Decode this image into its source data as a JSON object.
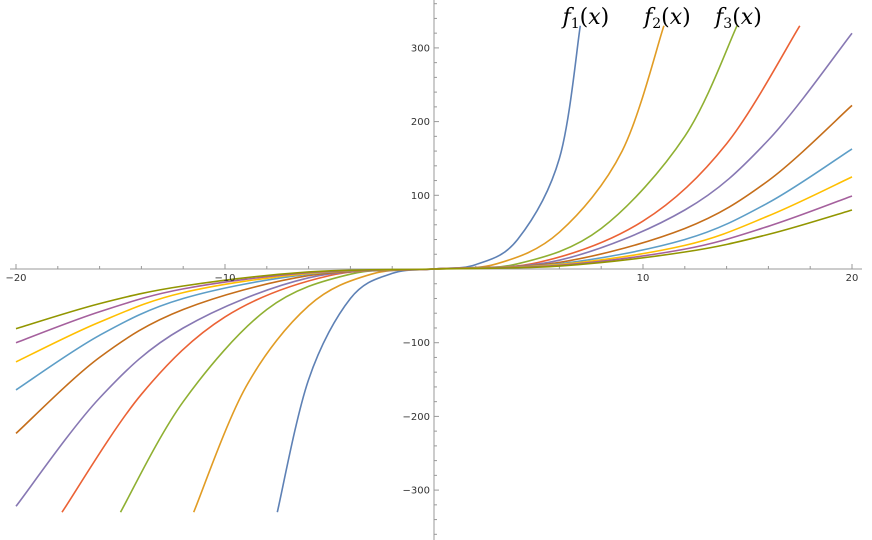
{
  "chart_data": {
    "type": "line",
    "title": "",
    "xlabel": "",
    "ylabel": "",
    "xlim": [
      -20,
      20
    ],
    "ylim": [
      -370,
      370
    ],
    "x_ticks": [
      -20,
      -10,
      10,
      20
    ],
    "y_ticks": [
      -300,
      -200,
      -100,
      100,
      200,
      300
    ],
    "x_tick_labels": [
      "−20",
      "−10",
      "10",
      "20"
    ],
    "y_tick_labels": [
      "−300",
      "−200",
      "−100",
      "100",
      "200",
      "300"
    ],
    "grid": false,
    "legend": "none",
    "annotations": [
      {
        "base": "f",
        "sub": "1",
        "arg": "(x)",
        "x": 7.3,
        "y": 338
      },
      {
        "base": "f",
        "sub": "2",
        "arg": "(x)",
        "x": 11.2,
        "y": 338
      },
      {
        "base": "f",
        "sub": "3",
        "arg": "(x)",
        "x": 14.6,
        "y": 338
      }
    ],
    "series": [
      {
        "color": "#5E81B5",
        "points": [
          [
            -7.5,
            -330
          ],
          [
            -6,
            -150
          ],
          [
            -4,
            -40
          ],
          [
            -2,
            -6
          ],
          [
            0,
            0
          ],
          [
            2,
            6
          ],
          [
            4,
            40
          ],
          [
            6,
            150
          ],
          [
            7,
            330
          ]
        ]
      },
      {
        "color": "#E19C24",
        "points": [
          [
            -11.5,
            -330
          ],
          [
            -9,
            -160
          ],
          [
            -6,
            -50
          ],
          [
            -3,
            -7
          ],
          [
            0,
            0
          ],
          [
            3,
            7
          ],
          [
            6,
            50
          ],
          [
            9,
            160
          ],
          [
            11,
            330
          ]
        ]
      },
      {
        "color": "#8FB032",
        "points": [
          [
            -15,
            -330
          ],
          [
            -12,
            -180
          ],
          [
            -8,
            -55
          ],
          [
            -4,
            -7
          ],
          [
            0,
            0
          ],
          [
            4,
            7
          ],
          [
            8,
            55
          ],
          [
            12,
            180
          ],
          [
            14.5,
            330
          ]
        ]
      },
      {
        "color": "#EB6235",
        "points": [
          [
            -17.8,
            -330
          ],
          [
            -14,
            -170
          ],
          [
            -10,
            -65
          ],
          [
            -5,
            -9
          ],
          [
            0,
            0
          ],
          [
            5,
            9
          ],
          [
            10,
            65
          ],
          [
            14,
            170
          ],
          [
            17.5,
            330
          ]
        ]
      },
      {
        "color": "#8778B3",
        "points": [
          [
            -20,
            -322
          ],
          [
            -16,
            -175
          ],
          [
            -12,
            -80
          ],
          [
            -6,
            -12
          ],
          [
            0,
            0
          ],
          [
            6,
            12
          ],
          [
            12,
            80
          ],
          [
            16,
            175
          ],
          [
            20,
            320
          ]
        ]
      },
      {
        "color": "#C56E1A",
        "points": [
          [
            -20,
            -223
          ],
          [
            -16,
            -120
          ],
          [
            -12,
            -55
          ],
          [
            -6,
            -9
          ],
          [
            0,
            0
          ],
          [
            6,
            9
          ],
          [
            12,
            55
          ],
          [
            16,
            120
          ],
          [
            20,
            222
          ]
        ]
      },
      {
        "color": "#5D9EC7",
        "points": [
          [
            -20,
            -164
          ],
          [
            -16,
            -90
          ],
          [
            -12,
            -40
          ],
          [
            -6,
            -7
          ],
          [
            0,
            0
          ],
          [
            6,
            7
          ],
          [
            12,
            40
          ],
          [
            16,
            90
          ],
          [
            20,
            163
          ]
        ]
      },
      {
        "color": "#FFBF00",
        "points": [
          [
            -20,
            -126
          ],
          [
            -16,
            -72
          ],
          [
            -12,
            -32
          ],
          [
            -6,
            -6
          ],
          [
            0,
            0
          ],
          [
            6,
            6
          ],
          [
            12,
            32
          ],
          [
            16,
            72
          ],
          [
            20,
            125
          ]
        ]
      },
      {
        "color": "#A5609D",
        "points": [
          [
            -20,
            -100
          ],
          [
            -16,
            -58
          ],
          [
            -12,
            -27
          ],
          [
            -6,
            -5
          ],
          [
            0,
            0
          ],
          [
            6,
            5
          ],
          [
            12,
            27
          ],
          [
            16,
            58
          ],
          [
            20,
            99
          ]
        ]
      },
      {
        "color": "#929600",
        "points": [
          [
            -20,
            -81
          ],
          [
            -16,
            -47
          ],
          [
            -12,
            -23
          ],
          [
            -6,
            -4
          ],
          [
            0,
            0
          ],
          [
            6,
            4
          ],
          [
            12,
            23
          ],
          [
            16,
            47
          ],
          [
            20,
            80
          ]
        ]
      }
    ]
  }
}
